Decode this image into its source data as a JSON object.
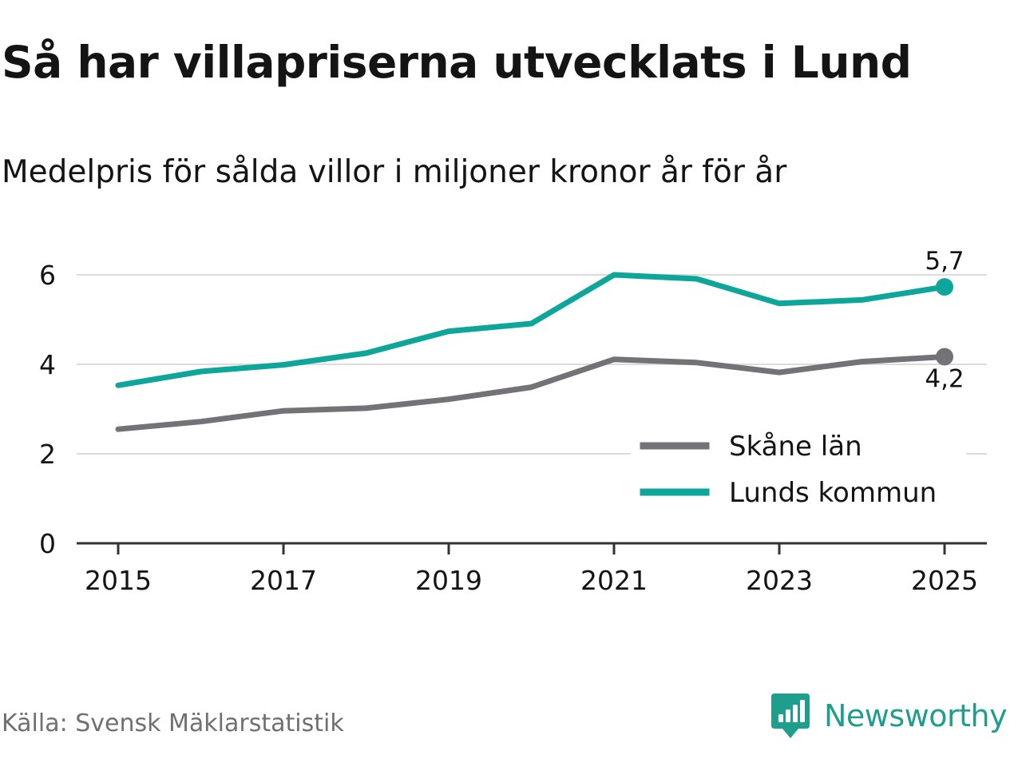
{
  "title": "Så har villapriserna utvecklats i Lund",
  "subtitle": "Medelpris för sålda villor i miljoner kronor år för år",
  "source": "Källa: Svensk Mäklarstatistik",
  "brand": "Newsworthy",
  "colors": {
    "teal": "#0ea59a",
    "gray": "#747277",
    "grid": "#dcdcdc",
    "axis": "#333333",
    "text": "#141414",
    "brand": "#1f9e8d"
  },
  "chart_data": {
    "type": "line",
    "title": "Så har villapriserna utvecklats i Lund",
    "subtitle": "Medelpris för sålda villor i miljoner kronor år för år",
    "xlabel": "",
    "ylabel": "",
    "x": [
      2015,
      2016,
      2017,
      2018,
      2019,
      2020,
      2021,
      2022,
      2023,
      2024,
      2025
    ],
    "x_ticks": [
      "2015",
      "2017",
      "2019",
      "2021",
      "2023",
      "2025"
    ],
    "y_ticks": [
      "0",
      "2",
      "4",
      "6"
    ],
    "ylim": [
      0,
      6.5
    ],
    "grid": true,
    "legend_position": "bottom-right",
    "series": [
      {
        "name": "Skåne län",
        "color": "#747277",
        "values": [
          2.55,
          2.72,
          2.96,
          3.02,
          3.22,
          3.49,
          4.11,
          4.04,
          3.82,
          4.06,
          4.17
        ],
        "end_label": "4,2"
      },
      {
        "name": "Lunds kommun",
        "color": "#0ea59a",
        "values": [
          3.53,
          3.84,
          3.99,
          4.25,
          4.74,
          4.91,
          6.0,
          5.91,
          5.36,
          5.44,
          5.73
        ],
        "end_label": "5,7"
      }
    ]
  }
}
